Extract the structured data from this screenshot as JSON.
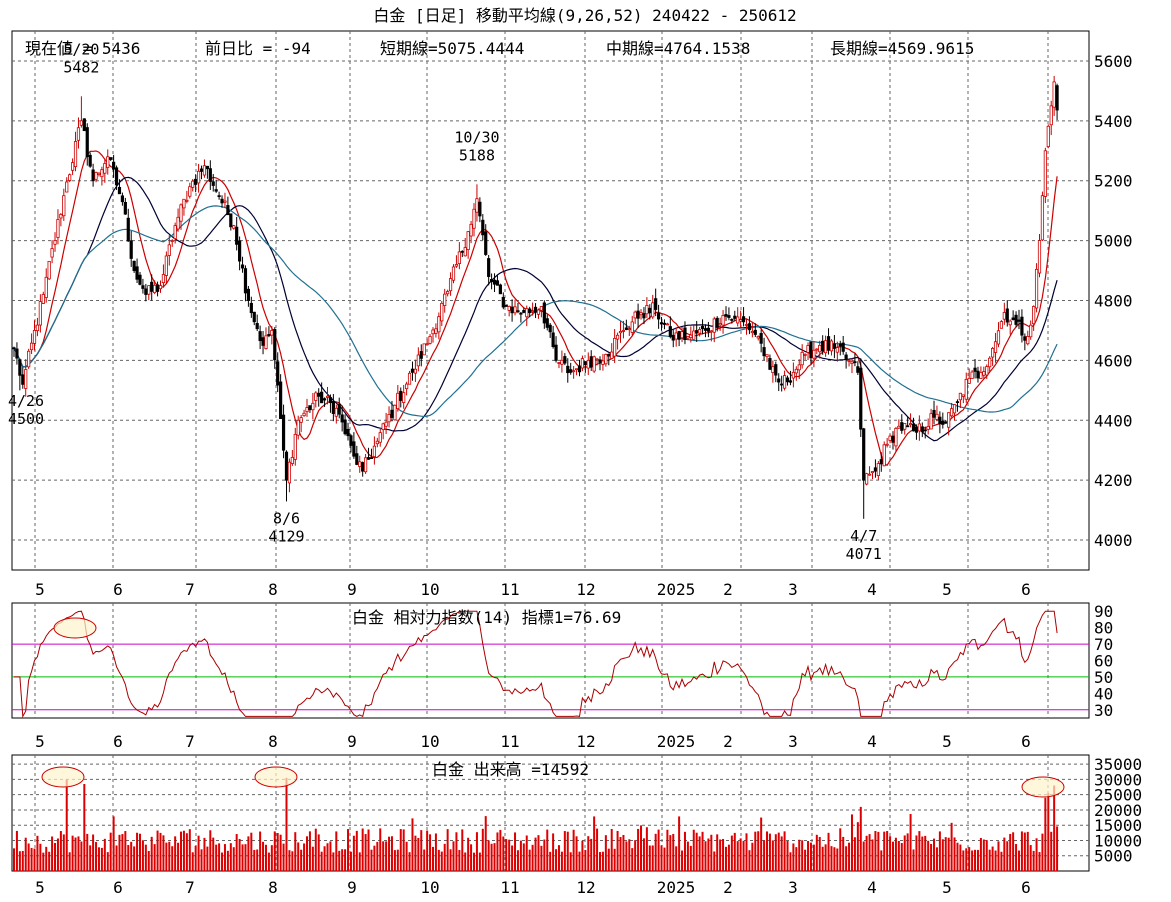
{
  "chart_data": [
    {
      "type": "candlestick",
      "title": "白金 [日足] 移動平均線(9,26,52) 240422 - 250612",
      "info": {
        "current": "現在値 = 5436",
        "change": "前日比 = -94",
        "short": "短期線=5075.4444",
        "mid": "中期線=4764.1538",
        "long": "長期線=4569.9615"
      },
      "ylim": [
        3900,
        5700
      ],
      "y_ticks": [
        4000,
        4200,
        4400,
        4600,
        4800,
        5000,
        5200,
        5400,
        5600
      ],
      "month_labels": [
        "5",
        "6",
        "7",
        "8",
        "9",
        "10",
        "11",
        "12",
        "2025",
        "2",
        "3",
        "4",
        "5",
        "6"
      ],
      "annotations": [
        {
          "date": "5/20",
          "value": "5482",
          "idx": 23
        },
        {
          "date": "4/26",
          "value": "4500",
          "idx": 2
        },
        {
          "date": "8/6",
          "value": "4129",
          "idx": 93
        },
        {
          "date": "10/30",
          "value": "5188",
          "idx": 158
        },
        {
          "date": "4/7",
          "value": "4071",
          "idx": 290
        }
      ],
      "close_anchors": [
        [
          0,
          4640
        ],
        [
          3,
          4520
        ],
        [
          10,
          4820
        ],
        [
          17,
          5150
        ],
        [
          23,
          5400
        ],
        [
          27,
          5200
        ],
        [
          32,
          5280
        ],
        [
          37,
          5130
        ],
        [
          41,
          4900
        ],
        [
          45,
          4820
        ],
        [
          50,
          4850
        ],
        [
          55,
          5050
        ],
        [
          60,
          5180
        ],
        [
          65,
          5250
        ],
        [
          70,
          5150
        ],
        [
          75,
          5050
        ],
        [
          80,
          4800
        ],
        [
          85,
          4650
        ],
        [
          88,
          4700
        ],
        [
          92,
          4300
        ],
        [
          93,
          4200
        ],
        [
          97,
          4400
        ],
        [
          104,
          4480
        ],
        [
          110,
          4440
        ],
        [
          116,
          4280
        ],
        [
          119,
          4230
        ],
        [
          124,
          4330
        ],
        [
          130,
          4450
        ],
        [
          136,
          4560
        ],
        [
          142,
          4680
        ],
        [
          148,
          4830
        ],
        [
          155,
          5030
        ],
        [
          158,
          5140
        ],
        [
          162,
          4880
        ],
        [
          168,
          4780
        ],
        [
          174,
          4760
        ],
        [
          180,
          4780
        ],
        [
          185,
          4600
        ],
        [
          190,
          4560
        ],
        [
          196,
          4600
        ],
        [
          202,
          4620
        ],
        [
          208,
          4700
        ],
        [
          214,
          4760
        ],
        [
          219,
          4770
        ],
        [
          224,
          4680
        ],
        [
          230,
          4680
        ],
        [
          236,
          4700
        ],
        [
          242,
          4750
        ],
        [
          246,
          4740
        ],
        [
          250,
          4720
        ],
        [
          254,
          4680
        ],
        [
          258,
          4570
        ],
        [
          262,
          4520
        ],
        [
          266,
          4560
        ],
        [
          270,
          4620
        ],
        [
          275,
          4650
        ],
        [
          280,
          4640
        ],
        [
          285,
          4600
        ],
        [
          288,
          4560
        ],
        [
          290,
          4200
        ],
        [
          294,
          4230
        ],
        [
          298,
          4320
        ],
        [
          302,
          4380
        ],
        [
          308,
          4360
        ],
        [
          314,
          4410
        ],
        [
          318,
          4390
        ],
        [
          322,
          4460
        ],
        [
          326,
          4540
        ],
        [
          330,
          4560
        ],
        [
          334,
          4640
        ],
        [
          338,
          4760
        ],
        [
          342,
          4720
        ],
        [
          346,
          4680
        ],
        [
          348,
          4780
        ],
        [
          350,
          5000
        ],
        [
          352,
          5300
        ],
        [
          354,
          5450
        ],
        [
          355,
          5530
        ],
        [
          356,
          5436
        ]
      ],
      "moving_averages": [
        {
          "period": 9,
          "color": "#cc0000"
        },
        {
          "period": 26,
          "color": "#000033"
        },
        {
          "period": 52,
          "color": "#207090"
        }
      ]
    },
    {
      "type": "line",
      "title": "白金 相対力指数(14) 指標1=76.69",
      "ylim": [
        25,
        95
      ],
      "y_ticks": [
        30,
        40,
        50,
        60,
        70,
        80,
        90
      ],
      "ref_lines": [
        {
          "value": 70,
          "color": "#cc00cc"
        },
        {
          "value": 50,
          "color": "#00bb00"
        },
        {
          "value": 30,
          "color": "#cc00cc"
        }
      ],
      "line_color": "#aa0000",
      "last_value": 76.69
    },
    {
      "type": "bar",
      "title": "白金 出来高 =14592",
      "ylim": [
        0,
        38000
      ],
      "y_ticks": [
        5000,
        10000,
        15000,
        20000,
        25000,
        30000,
        35000
      ],
      "bar_color": "#dd0000",
      "last_value": 14592,
      "spikes": [
        {
          "idx": 18,
          "value": 30000
        },
        {
          "idx": 24,
          "value": 28500
        },
        {
          "idx": 93,
          "value": 30500
        },
        {
          "idx": 289,
          "value": 21000
        },
        {
          "idx": 352,
          "value": 24000
        },
        {
          "idx": 353,
          "value": 25500
        },
        {
          "idx": 355,
          "value": 28000
        }
      ]
    }
  ]
}
